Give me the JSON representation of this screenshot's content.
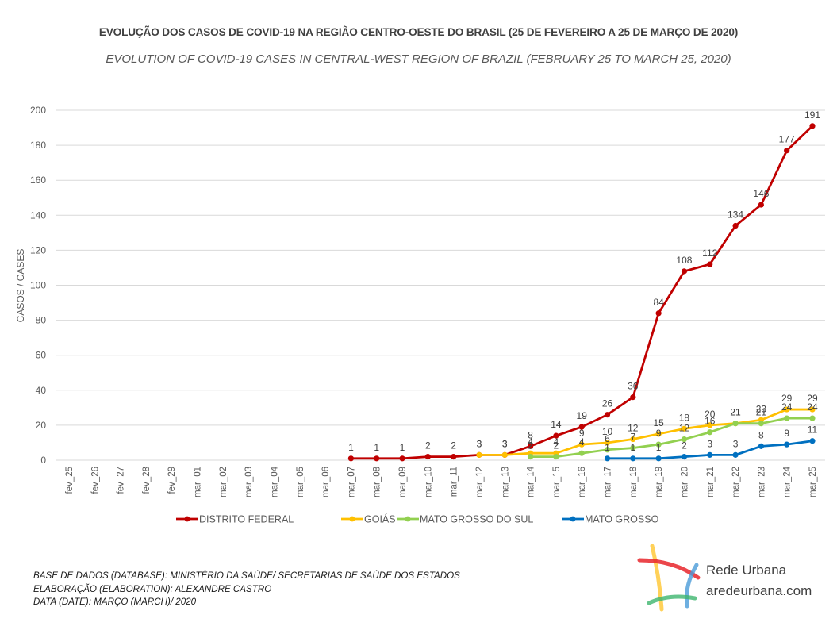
{
  "header": {
    "title": "EVOLUÇÃO DOS CASOS DE COVID-19 NA REGIÃO CENTRO-OESTE DO BRASIL (25 DE FEVEREIRO A 25 DE MARÇO DE 2020)",
    "subtitle": "EVOLUTION OF COVID-19 CASES IN CENTRAL-WEST REGION OF BRAZIL (FEBRUARY 25 TO MARCH 25, 2020)"
  },
  "footer": {
    "line1": "BASE DE DADOS (DATABASE): MINISTÉRIO DA SAÚDE/ SECRETARIAS DE SAÚDE DOS ESTADOS",
    "line2": "ELABORAÇÃO (ELABORATION):  ALEXANDRE CASTRO",
    "line3": "DATA (DATE):  MARÇO  (MARCH)/  2020"
  },
  "logo": {
    "name": "Rede Urbana",
    "url": "aredeurbana.com",
    "icon": "brush-strokes-logo-icon"
  },
  "chart_data": {
    "type": "line",
    "title": "EVOLUÇÃO DOS CASOS DE COVID-19 NA REGIÃO CENTRO-OESTE DO BRASIL (25 DE FEVEREIRO A 25 DE MARÇO DE 2020)",
    "subtitle": "EVOLUTION OF COVID-19 CASES IN CENTRAL-WEST REGION OF BRAZIL (FEBRUARY 25 TO MARCH 25, 2020)",
    "xlabel": "",
    "ylabel": "CASOS / CASES",
    "ylim": [
      0,
      200
    ],
    "yticks": [
      "0",
      "20",
      "40",
      "60",
      "80",
      "100",
      "120",
      "140",
      "160",
      "180",
      "200"
    ],
    "grid": true,
    "legend_position": "bottom",
    "data_labels": true,
    "categories": [
      "fev_25",
      "fev_26",
      "fev_27",
      "fev_28",
      "fev_29",
      "mar_01",
      "mar_02",
      "mar_03",
      "mar_04",
      "mar_05",
      "mar_06",
      "mar_07",
      "mar_08",
      "mar_09",
      "mar_10",
      "mar_11",
      "mar_12",
      "mar_13",
      "mar_14",
      "mar_15",
      "mar_16",
      "mar_17",
      "mar_18",
      "mar_19",
      "mar_20",
      "mar_21",
      "mar_22",
      "mar_23",
      "mar_24",
      "mar_25"
    ],
    "series": [
      {
        "name": "DISTRITO FEDERAL",
        "color": "#C00000",
        "values": [
          null,
          null,
          null,
          null,
          null,
          null,
          null,
          null,
          null,
          null,
          null,
          1,
          1,
          1,
          2,
          2,
          3,
          3,
          8,
          14,
          19,
          26,
          36,
          84,
          108,
          112,
          134,
          146,
          177,
          191
        ]
      },
      {
        "name": "GOIÁS",
        "color": "#FFC000",
        "values": [
          null,
          null,
          null,
          null,
          null,
          null,
          null,
          null,
          null,
          null,
          null,
          null,
          null,
          null,
          null,
          null,
          3,
          3,
          4,
          4,
          9,
          10,
          12,
          15,
          18,
          20,
          21,
          23,
          29,
          29
        ]
      },
      {
        "name": "MATO GROSSO DO SUL",
        "color": "#92D050",
        "values": [
          null,
          null,
          null,
          null,
          null,
          null,
          null,
          null,
          null,
          null,
          null,
          null,
          null,
          null,
          null,
          null,
          null,
          null,
          2,
          2,
          4,
          6,
          7,
          9,
          12,
          16,
          21,
          21,
          24,
          24
        ]
      },
      {
        "name": "MATO GROSSO",
        "color": "#0070C0",
        "values": [
          null,
          null,
          null,
          null,
          null,
          null,
          null,
          null,
          null,
          null,
          null,
          null,
          null,
          null,
          null,
          null,
          null,
          null,
          null,
          null,
          null,
          1,
          1,
          1,
          2,
          3,
          3,
          8,
          9,
          11
        ]
      }
    ]
  }
}
